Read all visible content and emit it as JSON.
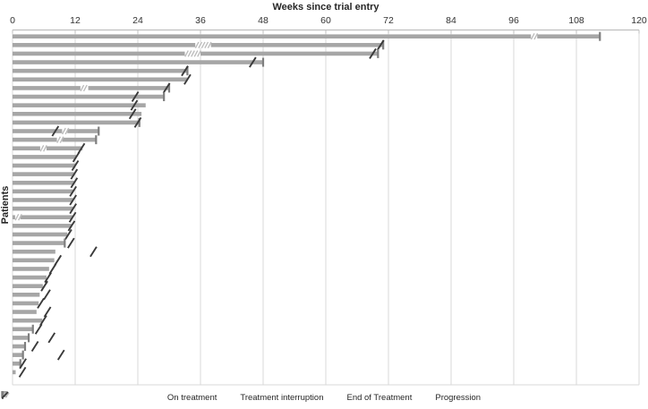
{
  "figure": {
    "kind": "swimmer plot"
  },
  "chart_data": {
    "type": "bar",
    "orientation": "horizontal",
    "title": "Weeks since trial entry",
    "xlabel": "Weeks since trial entry",
    "ylabel": "Patients",
    "xlim": [
      0,
      120
    ],
    "x_ticks": [
      0,
      12,
      24,
      36,
      48,
      60,
      72,
      84,
      96,
      108,
      120
    ],
    "grid": true,
    "legend_position": "bottom",
    "legend": [
      "On treatment",
      "Treatment interruption",
      "End of Treatment",
      "Progression"
    ],
    "colors": {
      "bar": "#a6a6a6",
      "grid": "#d9d9d9",
      "axis": "#bfbfbf",
      "end_tick": "#7f7f7f",
      "progression": "#3a3a3a",
      "interruption_hatch": "#bdbdbd",
      "text": "#262626"
    },
    "patients": [
      {
        "end": 112.5,
        "interruption": [
          99.3,
          100.5
        ],
        "eot": true,
        "progression": null
      },
      {
        "end": 71.0,
        "interruption": [
          35.0,
          38.0
        ],
        "eot": true,
        "progression": 70.5
      },
      {
        "end": 70.0,
        "interruption": [
          33.0,
          36.0
        ],
        "eot": true,
        "progression": 69.0
      },
      {
        "end": 48.0,
        "interruption": null,
        "eot": true,
        "progression": 46.0
      },
      {
        "end": 33.5,
        "interruption": null,
        "eot": true,
        "progression": 33.0
      },
      {
        "end": 33.5,
        "interruption": null,
        "eot": false,
        "progression": 33.5
      },
      {
        "end": 30.0,
        "interruption": [
          13.0,
          14.5
        ],
        "eot": true,
        "progression": 29.5
      },
      {
        "end": 29.0,
        "interruption": null,
        "eot": true,
        "progression": 23.5
      },
      {
        "end": 25.5,
        "interruption": null,
        "eot": false,
        "progression": 23.3
      },
      {
        "end": 24.7,
        "interruption": null,
        "eot": false,
        "progression": 23.0
      },
      {
        "end": 24.3,
        "interruption": null,
        "eot": true,
        "progression": 24.0
      },
      {
        "end": 16.5,
        "interruption": [
          9.5,
          10.5
        ],
        "eot": true,
        "progression": 8.2
      },
      {
        "end": 16.0,
        "interruption": [
          8.5,
          9.5
        ],
        "eot": true,
        "progression": null
      },
      {
        "end": 13.4,
        "interruption": [
          5.3,
          6.5
        ],
        "eot": false,
        "progression": 13.2
      },
      {
        "end": 12.2,
        "interruption": null,
        "eot": false,
        "progression": 12.2
      },
      {
        "end": 12.0,
        "interruption": null,
        "eot": false,
        "progression": 12.0
      },
      {
        "end": 11.8,
        "interruption": null,
        "eot": false,
        "progression": 11.8
      },
      {
        "end": 11.8,
        "interruption": null,
        "eot": false,
        "progression": 11.8
      },
      {
        "end": 11.6,
        "interruption": null,
        "eot": false,
        "progression": 11.6
      },
      {
        "end": 11.6,
        "interruption": null,
        "eot": false,
        "progression": 11.6
      },
      {
        "end": 11.6,
        "interruption": null,
        "eot": false,
        "progression": 11.6
      },
      {
        "end": 11.5,
        "interruption": [
          0.5,
          1.5
        ],
        "eot": false,
        "progression": 11.5
      },
      {
        "end": 11.3,
        "interruption": null,
        "eot": false,
        "progression": 11.3
      },
      {
        "end": 10.5,
        "interruption": null,
        "eot": false,
        "progression": 10.7
      },
      {
        "end": 10.0,
        "interruption": null,
        "eot": true,
        "progression": 11.2
      },
      {
        "end": 8.2,
        "interruption": null,
        "eot": false,
        "progression": 15.5
      },
      {
        "end": 8.0,
        "interruption": null,
        "eot": false,
        "progression": 8.7
      },
      {
        "end": 7.0,
        "interruption": null,
        "eot": false,
        "progression": 7.7
      },
      {
        "end": 6.5,
        "interruption": null,
        "eot": false,
        "progression": 6.8
      },
      {
        "end": 5.8,
        "interruption": null,
        "eot": false,
        "progression": 6.1
      },
      {
        "end": 5.2,
        "interruption": null,
        "eot": false,
        "progression": 6.6
      },
      {
        "end": 5.0,
        "interruption": null,
        "eot": false,
        "progression": 5.4
      },
      {
        "end": 4.6,
        "interruption": null,
        "eot": false,
        "progression": 6.7
      },
      {
        "end": 5.7,
        "interruption": null,
        "eot": false,
        "progression": 5.9
      },
      {
        "end": 3.9,
        "interruption": null,
        "eot": true,
        "progression": 5.0
      },
      {
        "end": 3.1,
        "interruption": null,
        "eot": true,
        "progression": 7.5
      },
      {
        "end": 2.4,
        "interruption": null,
        "eot": true,
        "progression": 4.3
      },
      {
        "end": 2.0,
        "interruption": null,
        "eot": true,
        "progression": 9.3
      },
      {
        "end": 1.5,
        "interruption": null,
        "eot": true,
        "progression": 2.0
      },
      {
        "end": 0.6,
        "interruption": null,
        "eot": false,
        "progression": 1.9
      }
    ]
  }
}
